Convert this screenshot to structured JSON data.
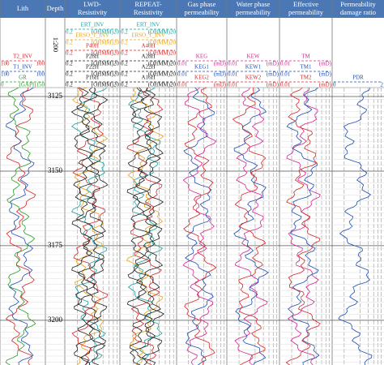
{
  "header": {
    "tracks": [
      {
        "title": "Lith",
        "curves": [
          {
            "name": "T2_INV",
            "left": "100",
            "right": "100",
            "color": "#d62728"
          },
          {
            "name": "T1_INV",
            "left": "100",
            "right": "100",
            "color": "#1f4fb4"
          },
          {
            "name": "GR",
            "left": "0",
            "right": "(GAPI)150",
            "color": "#2a9d2a"
          }
        ]
      },
      {
        "title": "Depth",
        "scale": "1:200"
      },
      {
        "title": "LWD-\nResistivity",
        "curves": [
          {
            "name": "ERT_INV",
            "left": "0.2",
            "right": "(OHMM)20",
            "color": "#17a2a2"
          },
          {
            "name": "ERSO_T_INV",
            "left": "0.2",
            "right": "(OHMM)20",
            "color": "#e8a317"
          },
          {
            "name": "P40H",
            "left": "0.2",
            "right": "(OHMM)20",
            "color": "#d62728"
          },
          {
            "name": "P28H",
            "left": "0.2",
            "right": "(OHMM)20",
            "color": "#222"
          },
          {
            "name": "P22H",
            "left": "0.2",
            "right": "(OHMM)20",
            "color": "#222"
          },
          {
            "name": "P16H",
            "left": "0.2",
            "right": "(OHMM)20",
            "color": "#222"
          }
        ]
      },
      {
        "title": "REPEAT-\nResistivity",
        "curves": [
          {
            "name": "ERT_INV",
            "left": "0.2",
            "right": "(OHMM)20",
            "color": "#17a2a2"
          },
          {
            "name": "ERSO_T_INV",
            "left": "0.2",
            "right": "(OHMM)20",
            "color": "#e8a317"
          },
          {
            "name": "A40H",
            "left": "0.2",
            "right": "(OHMM)20",
            "color": "#d62728"
          },
          {
            "name": "A28H",
            "left": "0.2",
            "right": "(OHMM)20",
            "color": "#222"
          },
          {
            "name": "A22H",
            "left": "0.2",
            "right": "(OHMM)20",
            "color": "#222"
          },
          {
            "name": "A16H",
            "left": "0.2",
            "right": "(OHMM)20",
            "color": "#222"
          }
        ]
      },
      {
        "title": "Gas phase\npermeability",
        "curves": [
          {
            "name": "KEG",
            "left": "0.01",
            "right": "(mD)",
            "color": "#d6278f"
          },
          {
            "name": "KEG1",
            "left": "0.01",
            "right": "(mD)",
            "color": "#1f4fb4"
          },
          {
            "name": "KEG2",
            "left": "0.01",
            "right": "(mD)",
            "color": "#d62728"
          }
        ]
      },
      {
        "title": "Water phase\npermeability",
        "curves": [
          {
            "name": "KEW",
            "left": "0.01",
            "right": "(mD)",
            "color": "#d6278f"
          },
          {
            "name": "KEW1",
            "left": "0.01",
            "right": "(mD)",
            "color": "#1f4fb4"
          },
          {
            "name": "KEW2",
            "left": "0.01",
            "right": "(mD)",
            "color": "#d62728"
          }
        ]
      },
      {
        "title": "Effective\npermeability",
        "curves": [
          {
            "name": "TM",
            "left": "0.01",
            "right": "(mD)",
            "color": "#d6278f"
          },
          {
            "name": "TM1",
            "left": "0.01",
            "right": "(mD)",
            "color": "#1f4fb4"
          },
          {
            "name": "TM2",
            "left": "0.01",
            "right": "(mD)",
            "color": "#d62728"
          }
        ]
      },
      {
        "title": "Permeability\ndamage ratio",
        "curves": [
          {
            "name": "PDR",
            "left": "0",
            "right": "2",
            "color": "#1f4fb4"
          }
        ]
      }
    ]
  },
  "depth": {
    "ylim": [
      3122,
      3215
    ],
    "ticks": [
      3125,
      3150,
      3175,
      3200
    ]
  }
}
